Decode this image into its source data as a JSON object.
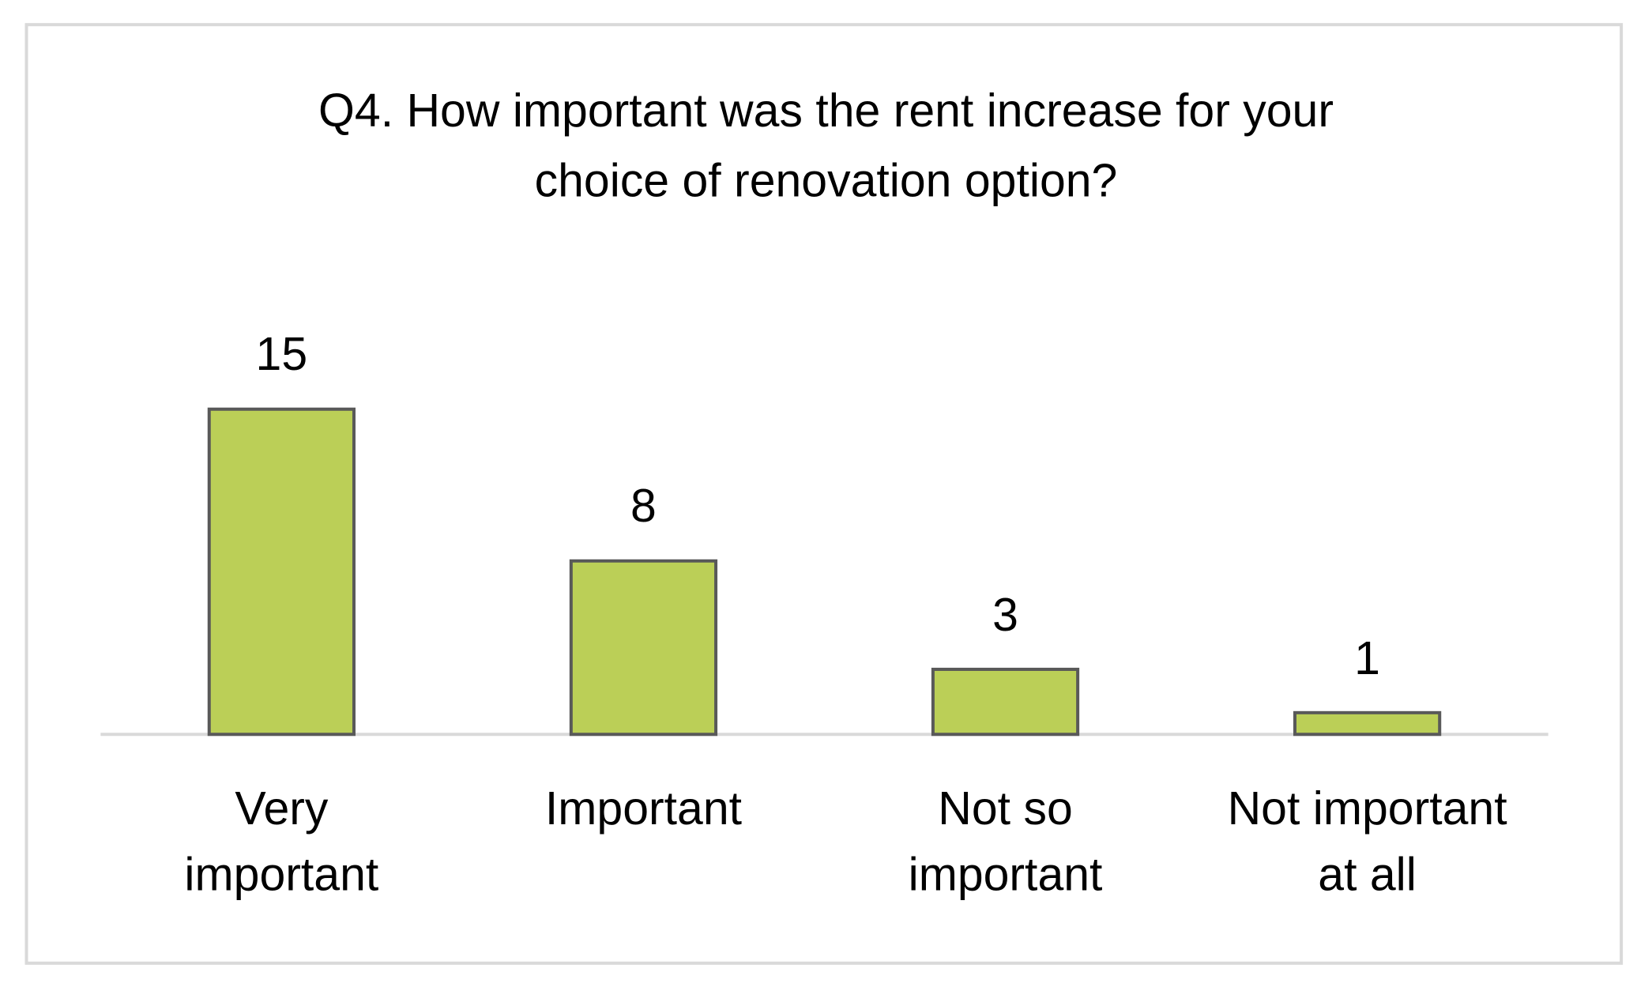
{
  "chart_data": {
    "type": "bar",
    "title": "Q4. How important was the rent increase for your\nchoice of renovation option?",
    "categories": [
      "Very\nimportant",
      "Important",
      "Not so\nimportant",
      "Not important\nat all"
    ],
    "values": [
      15,
      8,
      3,
      1
    ],
    "color": "#bbcf57"
  }
}
